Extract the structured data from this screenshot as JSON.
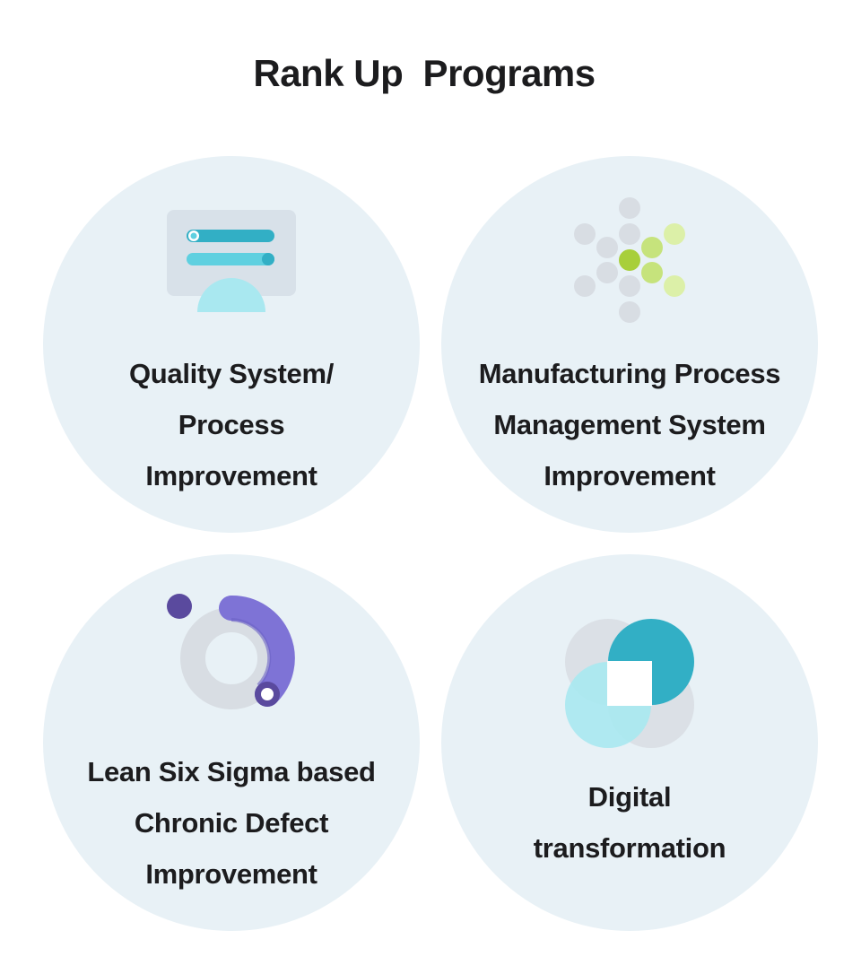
{
  "title": "Rank Up  Programs",
  "programs": [
    {
      "lines": [
        "Quality System/",
        "Process",
        "Improvement"
      ],
      "icon": "monitor-checklist-icon"
    },
    {
      "lines": [
        "Manufacturing Process",
        "Management System",
        "Improvement"
      ],
      "icon": "dot-arrow-icon"
    },
    {
      "lines": [
        "Lean Six Sigma based",
        "Chronic Defect",
        "Improvement"
      ],
      "icon": "donut-progress-icon"
    },
    {
      "lines": [
        "Digital",
        "transformation"
      ],
      "icon": "overlapping-circles-icon"
    }
  ],
  "colors": {
    "card_bg": "#e8f1f6",
    "teal": "#32afc5",
    "light_teal": "#a9e8f0",
    "lime": "#a8cf3b",
    "purple": "#7e73d6",
    "dark_purple": "#5a4a9e",
    "gray": "#d8dde3"
  }
}
